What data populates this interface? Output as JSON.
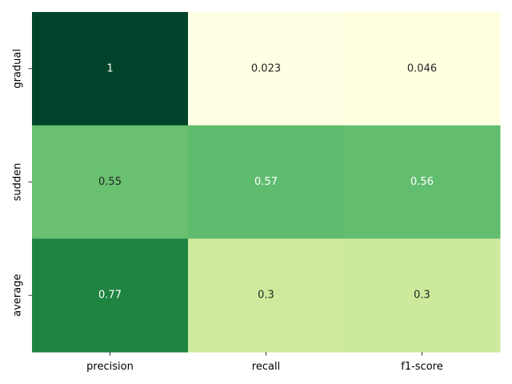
{
  "chart_data": {
    "type": "heatmap",
    "colormap": "YlGn",
    "colorbar": false,
    "rows": [
      "gradual",
      "sudden",
      "average"
    ],
    "columns": [
      "precision",
      "recall",
      "f1-score"
    ],
    "values": [
      [
        1,
        0.023,
        0.046
      ],
      [
        0.55,
        0.57,
        0.56
      ],
      [
        0.77,
        0.3,
        0.3
      ]
    ],
    "labels": [
      [
        "1",
        "0.023",
        "0.046"
      ],
      [
        "0.55",
        "0.57",
        "0.56"
      ],
      [
        "0.77",
        "0.3",
        "0.3"
      ]
    ],
    "cell_colors": [
      [
        "#00452b",
        "#ffffe4",
        "#ffffe0"
      ],
      [
        "#68c070",
        "#5fbc6e",
        "#62bd6f"
      ],
      [
        "#1f8442",
        "#cfea9c",
        "#cde99c"
      ]
    ],
    "text_colors": [
      [
        "#ffffff",
        "#262626",
        "#262626"
      ],
      [
        "#262626",
        "#ffffff",
        "#ffffff"
      ],
      [
        "#ffffff",
        "#262626",
        "#262626"
      ]
    ]
  }
}
